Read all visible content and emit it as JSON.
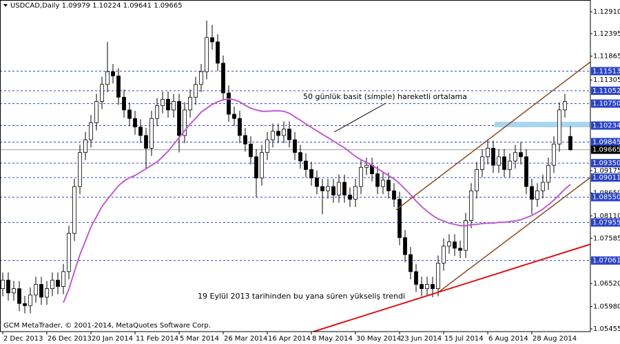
{
  "chart_data": {
    "type": "candlestick",
    "symbol": "USDCAD,Daily",
    "copyright": "GCM MetaTrader, © 2001-2014, MetaQuotes Software Corp.",
    "annotations": [
      "50 günlük basit (simple) hareketli ortalama",
      "19 Eylül 2013 tarihinden bu yana süren yükseliş trendi"
    ],
    "categories": [
      "2 Dec 2013",
      null,
      null,
      null,
      null,
      null,
      null,
      null,
      "26 Dec 2013",
      null,
      null,
      null,
      null,
      null,
      null,
      null,
      "20 Jan 2014",
      null,
      null,
      null,
      null,
      null,
      null,
      null,
      "11 Feb 2014",
      null,
      null,
      null,
      null,
      null,
      null,
      null,
      "5 Mar 2014",
      null,
      null,
      null,
      null,
      null,
      null,
      null,
      "26 Mar 2014",
      null,
      null,
      null,
      null,
      null,
      null,
      null,
      "16 Apr 2014",
      null,
      null,
      null,
      null,
      null,
      null,
      null,
      "8 May 2014",
      null,
      null,
      null,
      null,
      null,
      null,
      null,
      "30 May 2014",
      null,
      null,
      null,
      null,
      null,
      null,
      null,
      "23 Jun 2014",
      null,
      null,
      null,
      null,
      null,
      null,
      null,
      "15 Jul 2014",
      null,
      null,
      null,
      null,
      null,
      null,
      null,
      "6 Aug 2014",
      null,
      null,
      null,
      null,
      null,
      null,
      null,
      "28 Aug 2014",
      null,
      null,
      null,
      null,
      null,
      null,
      null
    ],
    "open": [
      1.064,
      1.066,
      1.063,
      1.064,
      1.0605,
      1.06,
      1.0625,
      1.065,
      1.062,
      1.064,
      1.066,
      1.0645,
      1.068,
      1.077,
      1.088,
      1.096,
      1.099,
      1.103,
      1.108,
      1.112,
      1.115,
      1.114,
      1.109,
      1.106,
      1.104,
      1.102,
      1.1,
      1.097,
      1.104,
      1.107,
      1.1085,
      1.106,
      1.108,
      1.1,
      1.106,
      1.109,
      1.112,
      1.115,
      1.123,
      1.122,
      1.117,
      1.11,
      1.105,
      1.104,
      1.1,
      1.098,
      1.095,
      1.09,
      1.096,
      1.099,
      1.101,
      1.1,
      1.1015,
      1.099,
      1.096,
      1.094,
      1.092,
      1.09,
      1.088,
      1.087,
      1.088,
      1.086,
      1.089,
      1.086,
      1.085,
      1.088,
      1.0925,
      1.093,
      1.091,
      1.088,
      1.0895,
      1.087,
      1.085,
      1.076,
      1.072,
      1.068,
      1.065,
      1.064,
      1.065,
      1.064,
      1.07,
      1.074,
      1.075,
      1.0735,
      1.073,
      1.08,
      1.087,
      1.092,
      1.095,
      1.097,
      1.093,
      1.095,
      1.092,
      1.094,
      1.096,
      1.095,
      1.088,
      1.085,
      1.087,
      1.089,
      1.093,
      1.098,
      1.106,
      1.09979
    ],
    "high": [
      1.0678,
      1.0678,
      1.0658,
      1.0658,
      1.0623,
      1.0643,
      1.0668,
      1.0668,
      1.0658,
      1.0678,
      1.0678,
      1.0698,
      1.0788,
      1.0898,
      1.0978,
      1.1008,
      1.1048,
      1.1098,
      1.1138,
      1.122,
      1.1168,
      1.1158,
      1.1108,
      1.1078,
      1.1058,
      1.1038,
      1.1018,
      1.1058,
      1.1088,
      1.1103,
      1.1103,
      1.1098,
      1.1098,
      1.1078,
      1.1108,
      1.1138,
      1.1168,
      1.127,
      1.126,
      1.1238,
      1.1188,
      1.1118,
      1.1068,
      1.1058,
      1.1018,
      1.0998,
      1.0968,
      1.0978,
      1.1008,
      1.1028,
      1.1028,
      1.1033,
      1.1033,
      1.1008,
      1.0978,
      1.0958,
      1.0938,
      1.0918,
      1.0898,
      1.0898,
      1.0898,
      1.0908,
      1.0908,
      1.0878,
      1.0898,
      1.0943,
      1.0948,
      1.0948,
      1.0928,
      1.0913,
      1.0913,
      1.0888,
      1.0868,
      1.0778,
      1.0738,
      1.0698,
      1.0668,
      1.0668,
      1.0668,
      1.0718,
      1.0758,
      1.0768,
      1.0768,
      1.0753,
      1.0818,
      1.0888,
      1.0938,
      1.0968,
      1.0988,
      1.0988,
      1.0968,
      1.0968,
      1.0958,
      1.0978,
      1.0985,
      1.0968,
      1.0898,
      1.0888,
      1.0908,
      1.0948,
      1.0998,
      1.1078,
      1.1098,
      1.10224
    ],
    "low": [
      1.0622,
      1.0612,
      1.0612,
      1.0587,
      1.0582,
      1.0582,
      1.0607,
      1.0602,
      1.0602,
      1.0622,
      1.0627,
      1.0627,
      1.0662,
      1.0752,
      1.0862,
      1.0942,
      1.0972,
      1.1012,
      1.1062,
      1.1102,
      1.1122,
      1.1072,
      1.1042,
      1.1022,
      1.1002,
      1.0982,
      1.092,
      1.0952,
      1.1022,
      1.1052,
      1.1042,
      1.1042,
      1.096,
      1.0982,
      1.1042,
      1.1072,
      1.1102,
      1.1132,
      1.1202,
      1.1152,
      1.1082,
      1.1032,
      1.1022,
      1.0982,
      1.0962,
      1.0932,
      1.0855,
      1.0882,
      1.0942,
      1.0972,
      1.0982,
      1.0982,
      1.0972,
      1.0942,
      1.0922,
      1.0902,
      1.0882,
      1.0862,
      1.0815,
      1.0852,
      1.0842,
      1.0842,
      1.0842,
      1.0832,
      1.0832,
      1.0862,
      1.0907,
      1.0892,
      1.0862,
      1.0862,
      1.0852,
      1.0832,
      1.0742,
      1.0702,
      1.0662,
      1.0632,
      1.0622,
      1.0622,
      1.062,
      1.0622,
      1.0682,
      1.0722,
      1.0717,
      1.0712,
      1.0712,
      1.0782,
      1.0852,
      1.0902,
      1.0932,
      1.0912,
      1.0912,
      1.0902,
      1.0902,
      1.0922,
      1.0932,
      1.0862,
      1.0815,
      1.0832,
      1.0852,
      1.0872,
      1.0912,
      1.0962,
      1.1042,
      1.09641
    ],
    "close": [
      1.066,
      1.063,
      1.064,
      1.0605,
      1.06,
      1.0625,
      1.065,
      1.062,
      1.064,
      1.066,
      1.0645,
      1.068,
      1.077,
      1.088,
      1.096,
      1.099,
      1.103,
      1.108,
      1.112,
      1.115,
      1.114,
      1.109,
      1.106,
      1.104,
      1.102,
      1.1,
      1.097,
      1.104,
      1.107,
      1.1085,
      1.106,
      1.108,
      1.1,
      1.106,
      1.109,
      1.112,
      1.115,
      1.123,
      1.122,
      1.117,
      1.11,
      1.105,
      1.104,
      1.1,
      1.098,
      1.095,
      1.09,
      1.096,
      1.099,
      1.101,
      1.1,
      1.1015,
      1.099,
      1.096,
      1.094,
      1.092,
      1.09,
      1.088,
      1.087,
      1.088,
      1.086,
      1.089,
      1.086,
      1.085,
      1.088,
      1.0925,
      1.093,
      1.091,
      1.088,
      1.0895,
      1.087,
      1.085,
      1.076,
      1.072,
      1.068,
      1.065,
      1.064,
      1.065,
      1.064,
      1.07,
      1.074,
      1.075,
      1.0735,
      1.073,
      1.08,
      1.087,
      1.092,
      1.095,
      1.097,
      1.093,
      1.095,
      1.092,
      1.094,
      1.096,
      1.095,
      1.088,
      1.085,
      1.087,
      1.089,
      1.093,
      1.098,
      1.106,
      1.108,
      1.09665
    ],
    "moving_average": {
      "color": "#c05cd0",
      "values": [
        null,
        null,
        null,
        null,
        null,
        null,
        null,
        null,
        null,
        null,
        null,
        1.0607,
        1.0639,
        1.068,
        1.072,
        1.0752,
        1.0785,
        1.0809,
        1.0833,
        1.085,
        1.0866,
        1.0882,
        1.0893,
        1.0901,
        1.0906,
        1.0914,
        1.0922,
        1.093,
        1.0938,
        1.095,
        1.0963,
        1.0979,
        1.0995,
        1.1011,
        1.1027,
        1.104,
        1.1055,
        1.1064,
        1.1073,
        1.1079,
        1.1084,
        1.1086,
        1.1084,
        1.1079,
        1.1071,
        1.1064,
        1.106,
        1.1057,
        1.1057,
        1.1058,
        1.1058,
        1.1057,
        1.1052,
        1.1044,
        1.1036,
        1.1027,
        1.1019,
        1.1011,
        1.1003,
        1.0995,
        1.0987,
        1.0979,
        1.0971,
        1.0961,
        1.0951,
        1.0943,
        1.0937,
        1.093,
        1.0922,
        1.0914,
        1.0906,
        1.0898,
        1.0887,
        1.0874,
        1.0861,
        1.0846,
        1.0833,
        1.0822,
        1.0812,
        1.0804,
        1.0799,
        1.0794,
        1.0791,
        1.0788,
        1.0788,
        1.079,
        1.0791,
        1.0793,
        1.0794,
        1.0794,
        1.0796,
        1.0796,
        1.0798,
        1.0799,
        1.0802,
        1.0807,
        1.0812,
        1.0819,
        1.0827,
        1.0837,
        1.0848,
        1.0861,
        1.0874,
        1.0885
      ]
    },
    "ylim": [
      1.0539,
      1.13185
    ],
    "yticks": [
      {
        "value": 1.1291,
        "label": "1.12910"
      },
      1.12395,
      1.11865,
      1.11305,
      {
        "value": 1.09175,
        "label": "1.09175"
      },
      {
        "value": 1.0865,
        "label": "1.08650"
      },
      {
        "value": 1.0811,
        "label": "1.08110"
      },
      1.07585,
      {
        "value": 1.0652,
        "label": "1.06520"
      },
      {
        "value": 1.0598,
        "label": "1.05980"
      },
      1.05455
    ],
    "levels": [
      1.11513,
      1.11052,
      {
        "value": 1.1075,
        "label": "1.10750"
      },
      1.10234,
      1.09845,
      {
        "value": 1.0935,
        "label": "1.09350"
      },
      1.09011,
      {
        "value": 1.0855,
        "label": "1.08550"
      },
      1.07955,
      1.07061
    ],
    "level_color": "#2a43c8",
    "current_price": 1.09665,
    "bull_color": "#ffffff",
    "bear_color": "#000000"
  }
}
